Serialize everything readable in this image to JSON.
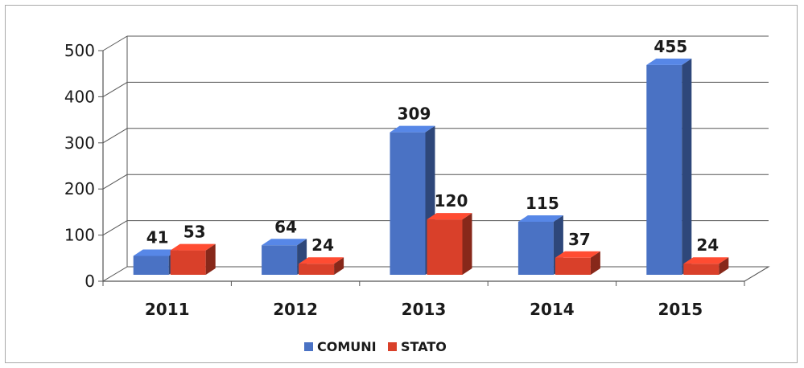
{
  "chart_data": {
    "type": "bar",
    "title": "",
    "xlabel": "",
    "ylabel": "",
    "categories": [
      "2011",
      "2012",
      "2013",
      "2014",
      "2015"
    ],
    "series": [
      {
        "name": "COMUNI",
        "color": "#4a72c4",
        "values": [
          41,
          64,
          309,
          115,
          455
        ]
      },
      {
        "name": "STATO",
        "color": "#d9402a",
        "values": [
          53,
          24,
          120,
          37,
          24
        ]
      }
    ],
    "ylim": [
      0,
      500
    ],
    "yticks": [
      0,
      100,
      200,
      300,
      400,
      500
    ],
    "grid": true,
    "legend": "bottom",
    "style": "3d-clustered-column"
  }
}
